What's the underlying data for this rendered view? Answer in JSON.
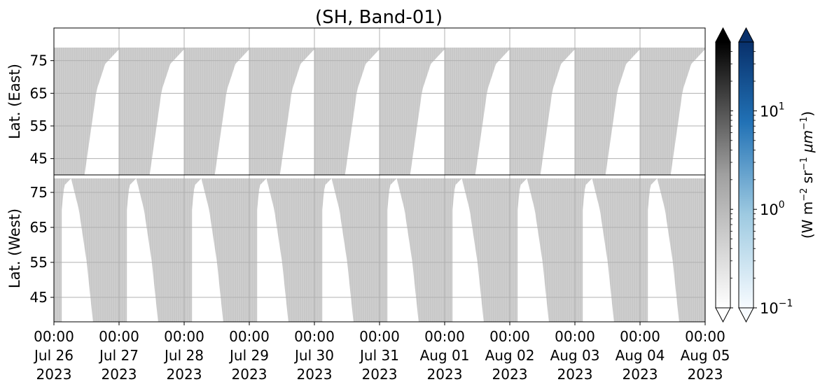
{
  "chart_data": {
    "type": "heatmap",
    "title": "(SH, Band-01)",
    "panels": [
      {
        "name": "east",
        "ylabel": "Lat. (East)",
        "yticks": [
          45,
          55,
          65,
          75
        ],
        "ylim": [
          85,
          40
        ],
        "y_direction": "increasing downward",
        "grey_coverage_lat_range": [
          40,
          79
        ],
        "white_gap_edge_latitude_by_day_fraction": [
          [
            0.0,
            79
          ],
          [
            0.1,
            76
          ],
          [
            0.2,
            70
          ],
          [
            0.3,
            58
          ],
          [
            0.4,
            45
          ],
          [
            0.5,
            40
          ]
        ],
        "white_gaps_start_frac_of_day": 0.47,
        "white_gaps_end_frac_of_day": 1.0
      },
      {
        "name": "west",
        "ylabel": "Lat. (West)",
        "yticks": [
          75,
          65,
          55,
          45
        ],
        "ylim": [
          80,
          38
        ],
        "y_direction": "increasing upward",
        "grey_coverage_lat_range": [
          38,
          79
        ],
        "white_gap_edge_latitude_by_day_fraction": [
          [
            0.0,
            40
          ],
          [
            0.05,
            62
          ],
          [
            0.12,
            74
          ],
          [
            0.2,
            79
          ]
        ],
        "white_gaps_start_frac_of_day": 0.12,
        "white_gaps_end_frac_of_day": 0.6
      }
    ],
    "x_ticks": [
      {
        "time": "00:00",
        "date": "Jul 26",
        "year": "2023"
      },
      {
        "time": "00:00",
        "date": "Jul 27",
        "year": "2023"
      },
      {
        "time": "00:00",
        "date": "Jul 28",
        "year": "2023"
      },
      {
        "time": "00:00",
        "date": "Jul 29",
        "year": "2023"
      },
      {
        "time": "00:00",
        "date": "Jul 30",
        "year": "2023"
      },
      {
        "time": "00:00",
        "date": "Jul 31",
        "year": "2023"
      },
      {
        "time": "00:00",
        "date": "Aug 01",
        "year": "2023"
      },
      {
        "time": "00:00",
        "date": "Aug 02",
        "year": "2023"
      },
      {
        "time": "00:00",
        "date": "Aug 03",
        "year": "2023"
      },
      {
        "time": "00:00",
        "date": "Aug 04",
        "year": "2023"
      },
      {
        "time": "00:00",
        "date": "Aug 05",
        "year": "2023"
      }
    ],
    "xlim": [
      "2023-07-26 00:00",
      "2023-08-05 00:00"
    ],
    "grid": true,
    "colorbars": [
      {
        "name": "grey",
        "scale": "log",
        "range": [
          0.1,
          50
        ],
        "colors": [
          "#ffffff",
          "#000000"
        ],
        "extend": "both"
      },
      {
        "name": "blue",
        "scale": "log",
        "range": [
          0.1,
          50
        ],
        "colors": [
          "#f7fbff",
          "#08306b"
        ],
        "extend": "both",
        "tick_labels": [
          {
            "value": 10,
            "base": "10",
            "exp": "1"
          },
          {
            "value": 1,
            "base": "10",
            "exp": "0"
          },
          {
            "value": 0.1,
            "base": "10",
            "exp": "−1"
          }
        ]
      }
    ],
    "colorbar_label": {
      "pre": "(W m",
      "sup1": "−2",
      "mid": " sr",
      "sup2": "−1",
      "mid2": " μm",
      "sup3": "−1",
      "post": ")"
    },
    "colors": {
      "data_grey": "#c8c8c8",
      "gap_white": "#ffffff",
      "grid": "#b0b0b0"
    }
  }
}
